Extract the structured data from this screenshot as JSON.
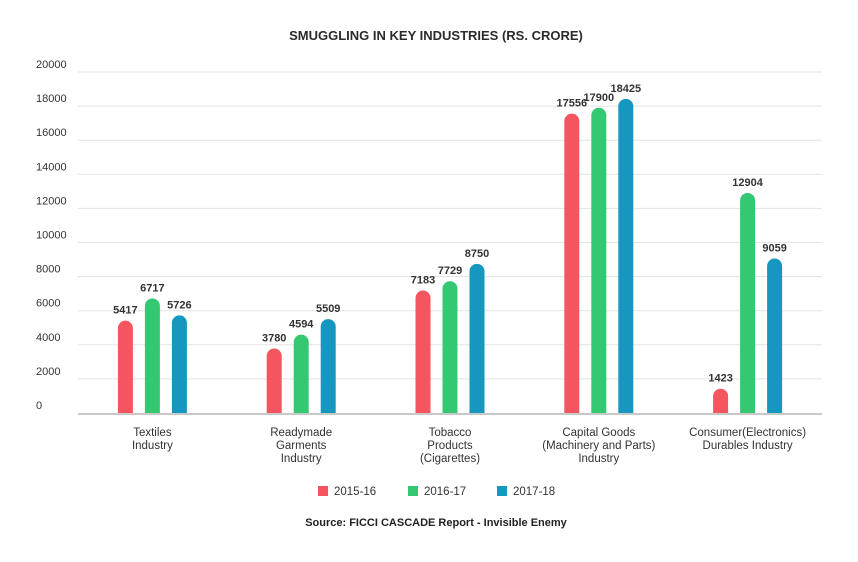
{
  "chart_data": {
    "type": "bar",
    "title": "SMUGGLING IN KEY INDUSTRIES (RS. CRORE)",
    "categories": [
      [
        "Textiles",
        "Industry"
      ],
      [
        "Readymade",
        "Garments",
        "Industry"
      ],
      [
        "Tobacco",
        "Products",
        "(Cigarettes)"
      ],
      [
        "Capital Goods",
        "(Machinery and Parts)",
        "Industry"
      ],
      [
        "Consumer(Electronics)",
        "Durables Industry"
      ]
    ],
    "series": [
      {
        "name": "2015-16",
        "color": "#f4555e",
        "values": [
          5417,
          3780,
          7183,
          17556,
          1423
        ]
      },
      {
        "name": "2016-17",
        "color": "#34c873",
        "values": [
          6717,
          4594,
          7729,
          17900,
          12904
        ]
      },
      {
        "name": "2017-18",
        "color": "#1597bf",
        "values": [
          5726,
          5509,
          8750,
          18425,
          9059
        ]
      }
    ],
    "yticks": [
      0,
      2000,
      4000,
      6000,
      8000,
      10000,
      12000,
      14000,
      16000,
      18000,
      20000
    ],
    "ylim": [
      0,
      20000
    ],
    "grid": true,
    "legend_position": "bottom",
    "source": "Source: FICCI CASCADE Report - Invisible Enemy"
  }
}
